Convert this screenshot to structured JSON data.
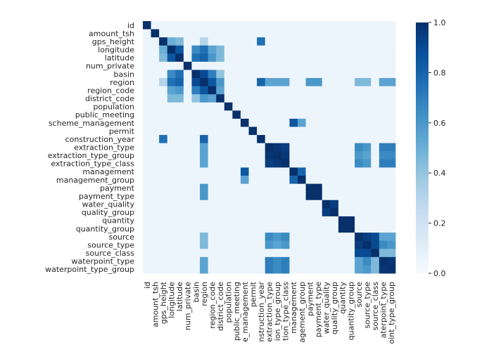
{
  "chart_data": {
    "type": "heatmap",
    "title": "",
    "xlabel": "",
    "ylabel": "",
    "row_labels": [
      "id",
      "amount_tsh",
      "gps_height",
      "longitude",
      "latitude",
      "num_private",
      "basin",
      "region",
      "region_code",
      "district_code",
      "population",
      "public_meeting",
      "scheme_management",
      "permit",
      "construction_year",
      "extraction_type",
      "extraction_type_group",
      "extraction_type_class",
      "management",
      "management_group",
      "payment",
      "payment_type",
      "water_quality",
      "quality_group",
      "quantity",
      "quantity_group",
      "source",
      "source_type",
      "source_class",
      "waterpoint_type",
      "waterpoint_type_group"
    ],
    "col_tick_labels": [
      "id",
      "amount_tsh",
      "gps_height",
      "longitude",
      "latitude",
      "num_private",
      "basin",
      "region",
      "region_code",
      "district_code",
      "population",
      "public_meeting",
      "e_management",
      "permit",
      "nstruction_year",
      "extraction_type",
      "ion_type_group",
      "tion_type_class",
      "management",
      "agement_group",
      "payment",
      "payment_type",
      "water_quality",
      "quality_group",
      "quantity",
      "quantity_group",
      "source",
      "source_type",
      "source_class",
      "aterpoint_type",
      "oint_type_group"
    ],
    "value_range": [
      0,
      1
    ],
    "colorbar": {
      "ticks": [
        "0.0",
        "0.2",
        "0.4",
        "0.6",
        "0.8",
        "1.0"
      ],
      "tick_values": [
        0,
        0.2,
        0.4,
        0.6,
        0.8,
        1.0
      ],
      "colors": [
        "#f7fbff",
        "#deebf7",
        "#c6dbef",
        "#9ecae1",
        "#6baed6",
        "#4292c6",
        "#2171b5",
        "#08519c",
        "#08306b"
      ]
    },
    "strong_pairs": [
      [
        2,
        3,
        0.5
      ],
      [
        2,
        4,
        0.45
      ],
      [
        2,
        7,
        0.3
      ],
      [
        2,
        14,
        0.75
      ],
      [
        3,
        4,
        0.85
      ],
      [
        3,
        6,
        0.65
      ],
      [
        3,
        7,
        0.75
      ],
      [
        3,
        8,
        0.55
      ],
      [
        3,
        9,
        0.45
      ],
      [
        4,
        6,
        0.75
      ],
      [
        4,
        7,
        0.8
      ],
      [
        4,
        8,
        0.6
      ],
      [
        4,
        9,
        0.45
      ],
      [
        6,
        7,
        0.9
      ],
      [
        6,
        8,
        0.7
      ],
      [
        6,
        9,
        0.4
      ],
      [
        7,
        8,
        0.85
      ],
      [
        7,
        9,
        0.6
      ],
      [
        7,
        14,
        0.8
      ],
      [
        7,
        15,
        0.55
      ],
      [
        7,
        16,
        0.55
      ],
      [
        7,
        17,
        0.55
      ],
      [
        7,
        20,
        0.6
      ],
      [
        7,
        21,
        0.6
      ],
      [
        7,
        26,
        0.45
      ],
      [
        7,
        27,
        0.45
      ],
      [
        7,
        29,
        0.55
      ],
      [
        7,
        30,
        0.55
      ],
      [
        8,
        9,
        0.55
      ],
      [
        12,
        18,
        0.85
      ],
      [
        12,
        19,
        0.55
      ],
      [
        15,
        16,
        0.98
      ],
      [
        15,
        17,
        0.95
      ],
      [
        16,
        17,
        0.97
      ],
      [
        15,
        26,
        0.65
      ],
      [
        15,
        27,
        0.6
      ],
      [
        15,
        29,
        0.7
      ],
      [
        15,
        30,
        0.7
      ],
      [
        16,
        26,
        0.6
      ],
      [
        16,
        27,
        0.55
      ],
      [
        16,
        29,
        0.65
      ],
      [
        16,
        30,
        0.65
      ],
      [
        17,
        26,
        0.65
      ],
      [
        17,
        27,
        0.6
      ],
      [
        17,
        29,
        0.7
      ],
      [
        17,
        30,
        0.7
      ],
      [
        18,
        19,
        0.8
      ],
      [
        20,
        21,
        1.0
      ],
      [
        22,
        23,
        0.95
      ],
      [
        24,
        25,
        1.0
      ],
      [
        26,
        27,
        0.95
      ],
      [
        26,
        28,
        0.9
      ],
      [
        27,
        28,
        0.9
      ],
      [
        26,
        29,
        0.55
      ],
      [
        26,
        30,
        0.55
      ],
      [
        27,
        29,
        0.65
      ],
      [
        27,
        30,
        0.6
      ],
      [
        28,
        29,
        0.45
      ],
      [
        28,
        30,
        0.45
      ],
      [
        29,
        30,
        0.98
      ]
    ]
  }
}
